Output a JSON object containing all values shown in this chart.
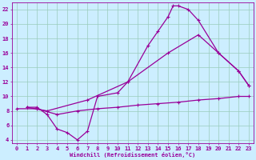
{
  "xlabel": "Windchill (Refroidissement éolien,°C)",
  "bg_color": "#cceeff",
  "line_color": "#990099",
  "grid_color": "#99ccbb",
  "xlim": [
    -0.5,
    23.5
  ],
  "ylim": [
    3.5,
    23
  ],
  "xticks": [
    0,
    1,
    2,
    3,
    4,
    5,
    6,
    7,
    8,
    9,
    10,
    11,
    12,
    13,
    14,
    15,
    16,
    17,
    18,
    19,
    20,
    21,
    22,
    23
  ],
  "yticks": [
    4,
    6,
    8,
    10,
    12,
    14,
    16,
    18,
    20,
    22
  ],
  "line1_x": [
    1,
    2,
    3,
    4,
    5,
    6,
    7,
    8,
    10,
    11,
    13,
    14,
    15,
    15.5,
    16,
    17,
    18,
    20,
    22,
    23
  ],
  "line1_y": [
    8.5,
    8.5,
    7.5,
    5.5,
    5.0,
    4.0,
    5.2,
    10.0,
    10.5,
    12.0,
    17.0,
    19.0,
    21.0,
    22.5,
    22.5,
    22.0,
    20.5,
    16.0,
    13.5,
    11.5
  ],
  "line2_x": [
    1,
    3,
    7,
    11,
    15,
    18,
    20,
    22,
    23
  ],
  "line2_y": [
    8.5,
    8.0,
    9.5,
    12.0,
    16.0,
    18.5,
    16.0,
    13.5,
    11.5
  ],
  "line3_x": [
    0,
    2,
    4,
    6,
    8,
    10,
    12,
    14,
    16,
    18,
    20,
    22,
    23
  ],
  "line3_y": [
    8.3,
    8.3,
    7.5,
    8.0,
    8.3,
    8.5,
    8.8,
    9.0,
    9.2,
    9.5,
    9.7,
    10.0,
    10.0
  ]
}
